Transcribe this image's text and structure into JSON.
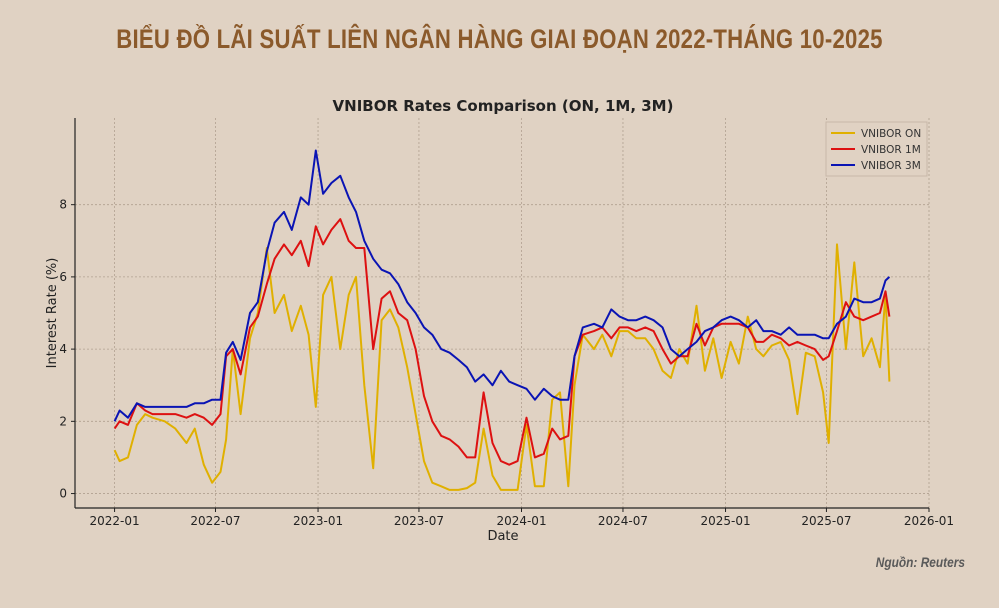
{
  "header": {
    "title": "BIỂU ĐỒ LÃI SUẤT LIÊN NGÂN HÀNG GIAI ĐOẠN 2022-THÁNG 10-2025"
  },
  "footer": {
    "source": "Nguồn: Reuters"
  },
  "chart_data": {
    "type": "line",
    "title": "VNIBOR Rates Comparison (ON, 1M, 3M)",
    "xlabel": "Date",
    "ylabel": "Interest Rate (%)",
    "xlim": [
      "2021-10-22",
      "2026-01-01"
    ],
    "ylim": [
      -0.4,
      10.4
    ],
    "x_ticks": [
      "2022-01",
      "2022-07",
      "2023-01",
      "2023-07",
      "2024-01",
      "2024-07",
      "2025-01",
      "2025-07",
      "2026-01"
    ],
    "y_ticks": [
      0,
      2,
      4,
      6,
      8
    ],
    "grid": true,
    "legend_position": "top-right",
    "x": [
      "2022-01-01",
      "2022-01-10",
      "2022-01-25",
      "2022-02-10",
      "2022-02-25",
      "2022-03-10",
      "2022-04-01",
      "2022-04-20",
      "2022-05-10",
      "2022-05-25",
      "2022-06-10",
      "2022-06-25",
      "2022-07-10",
      "2022-07-20",
      "2022-08-01",
      "2022-08-15",
      "2022-09-01",
      "2022-09-15",
      "2022-10-01",
      "2022-10-15",
      "2022-11-01",
      "2022-11-15",
      "2022-12-01",
      "2022-12-15",
      "2022-12-28",
      "2023-01-10",
      "2023-01-25",
      "2023-02-10",
      "2023-02-25",
      "2023-03-10",
      "2023-03-25",
      "2023-04-10",
      "2023-04-25",
      "2023-05-10",
      "2023-05-25",
      "2023-06-10",
      "2023-06-25",
      "2023-07-10",
      "2023-07-25",
      "2023-08-10",
      "2023-08-25",
      "2023-09-10",
      "2023-09-25",
      "2023-10-10",
      "2023-10-25",
      "2023-11-10",
      "2023-11-25",
      "2023-12-10",
      "2023-12-25",
      "2024-01-10",
      "2024-01-25",
      "2024-02-10",
      "2024-02-25",
      "2024-03-10",
      "2024-03-25",
      "2024-04-05",
      "2024-04-20",
      "2024-05-10",
      "2024-05-25",
      "2024-06-10",
      "2024-06-25",
      "2024-07-10",
      "2024-07-25",
      "2024-08-10",
      "2024-08-25",
      "2024-09-10",
      "2024-09-25",
      "2024-10-10",
      "2024-10-25",
      "2024-11-10",
      "2024-11-25",
      "2024-12-10",
      "2024-12-25",
      "2025-01-10",
      "2025-01-25",
      "2025-02-10",
      "2025-02-25",
      "2025-03-10",
      "2025-03-25",
      "2025-04-10",
      "2025-04-25",
      "2025-05-10",
      "2025-05-25",
      "2025-06-10",
      "2025-06-25",
      "2025-07-05",
      "2025-07-20",
      "2025-08-05",
      "2025-08-20",
      "2025-09-05",
      "2025-09-20",
      "2025-10-05",
      "2025-10-15",
      "2025-10-22"
    ],
    "series": [
      {
        "name": "VNIBOR ON",
        "color": "#e0b000",
        "values": [
          1.2,
          0.9,
          1.0,
          1.9,
          2.2,
          2.1,
          2.0,
          1.8,
          1.4,
          1.8,
          0.8,
          0.3,
          0.6,
          1.5,
          4.0,
          2.2,
          4.3,
          5.0,
          6.8,
          5.0,
          5.5,
          4.5,
          5.2,
          4.4,
          2.4,
          5.5,
          6.0,
          4.0,
          5.5,
          6.0,
          3.0,
          0.7,
          4.8,
          5.1,
          4.6,
          3.5,
          2.2,
          0.9,
          0.3,
          0.2,
          0.1,
          0.1,
          0.15,
          0.3,
          1.8,
          0.5,
          0.1,
          0.1,
          0.1,
          1.9,
          0.2,
          0.2,
          2.6,
          2.8,
          0.2,
          3.0,
          4.4,
          4.0,
          4.4,
          3.8,
          4.5,
          4.5,
          4.3,
          4.3,
          4.0,
          3.4,
          3.2,
          4.0,
          3.6,
          5.2,
          3.4,
          4.3,
          3.2,
          4.2,
          3.6,
          4.9,
          4.0,
          3.8,
          4.1,
          4.2,
          3.7,
          2.2,
          3.9,
          3.8,
          2.8,
          1.4,
          6.9,
          4.0,
          6.4,
          3.8,
          4.3,
          3.5,
          5.5,
          3.1
        ]
      },
      {
        "name": "VNIBOR 1M",
        "color": "#dd1111",
        "values": [
          1.8,
          2.0,
          1.9,
          2.5,
          2.3,
          2.2,
          2.2,
          2.2,
          2.1,
          2.2,
          2.1,
          1.9,
          2.2,
          3.8,
          4.0,
          3.3,
          4.6,
          4.9,
          5.8,
          6.5,
          6.9,
          6.6,
          7.0,
          6.3,
          7.4,
          6.9,
          7.3,
          7.6,
          7.0,
          6.8,
          6.8,
          4.0,
          5.4,
          5.6,
          5.0,
          4.8,
          4.0,
          2.7,
          2.0,
          1.6,
          1.5,
          1.3,
          1.0,
          1.0,
          2.8,
          1.4,
          0.9,
          0.8,
          0.9,
          2.1,
          1.0,
          1.1,
          1.8,
          1.5,
          1.6,
          3.8,
          4.4,
          4.5,
          4.6,
          4.3,
          4.6,
          4.6,
          4.5,
          4.6,
          4.5,
          4.0,
          3.6,
          3.8,
          3.8,
          4.7,
          4.1,
          4.6,
          4.7,
          4.7,
          4.7,
          4.6,
          4.2,
          4.2,
          4.4,
          4.3,
          4.1,
          4.2,
          4.1,
          4.0,
          3.7,
          3.8,
          4.5,
          5.3,
          4.9,
          4.8,
          4.9,
          5.0,
          5.6,
          4.9
        ]
      },
      {
        "name": "VNIBOR 3M",
        "color": "#0a14b4",
        "values": [
          2.0,
          2.3,
          2.1,
          2.5,
          2.4,
          2.4,
          2.4,
          2.4,
          2.4,
          2.5,
          2.5,
          2.6,
          2.6,
          3.9,
          4.2,
          3.7,
          5.0,
          5.3,
          6.7,
          7.5,
          7.8,
          7.3,
          8.2,
          8.0,
          9.5,
          8.3,
          8.6,
          8.8,
          8.2,
          7.8,
          7.0,
          6.5,
          6.2,
          6.1,
          5.8,
          5.3,
          5.0,
          4.6,
          4.4,
          4.0,
          3.9,
          3.7,
          3.5,
          3.1,
          3.3,
          3.0,
          3.4,
          3.1,
          3.0,
          2.9,
          2.6,
          2.9,
          2.7,
          2.6,
          2.6,
          3.8,
          4.6,
          4.7,
          4.6,
          5.1,
          4.9,
          4.8,
          4.8,
          4.9,
          4.8,
          4.6,
          4.0,
          3.8,
          4.0,
          4.2,
          4.5,
          4.6,
          4.8,
          4.9,
          4.8,
          4.6,
          4.8,
          4.5,
          4.5,
          4.4,
          4.6,
          4.4,
          4.4,
          4.4,
          4.3,
          4.3,
          4.7,
          4.9,
          5.4,
          5.3,
          5.3,
          5.4,
          5.9,
          6.0
        ]
      }
    ]
  }
}
